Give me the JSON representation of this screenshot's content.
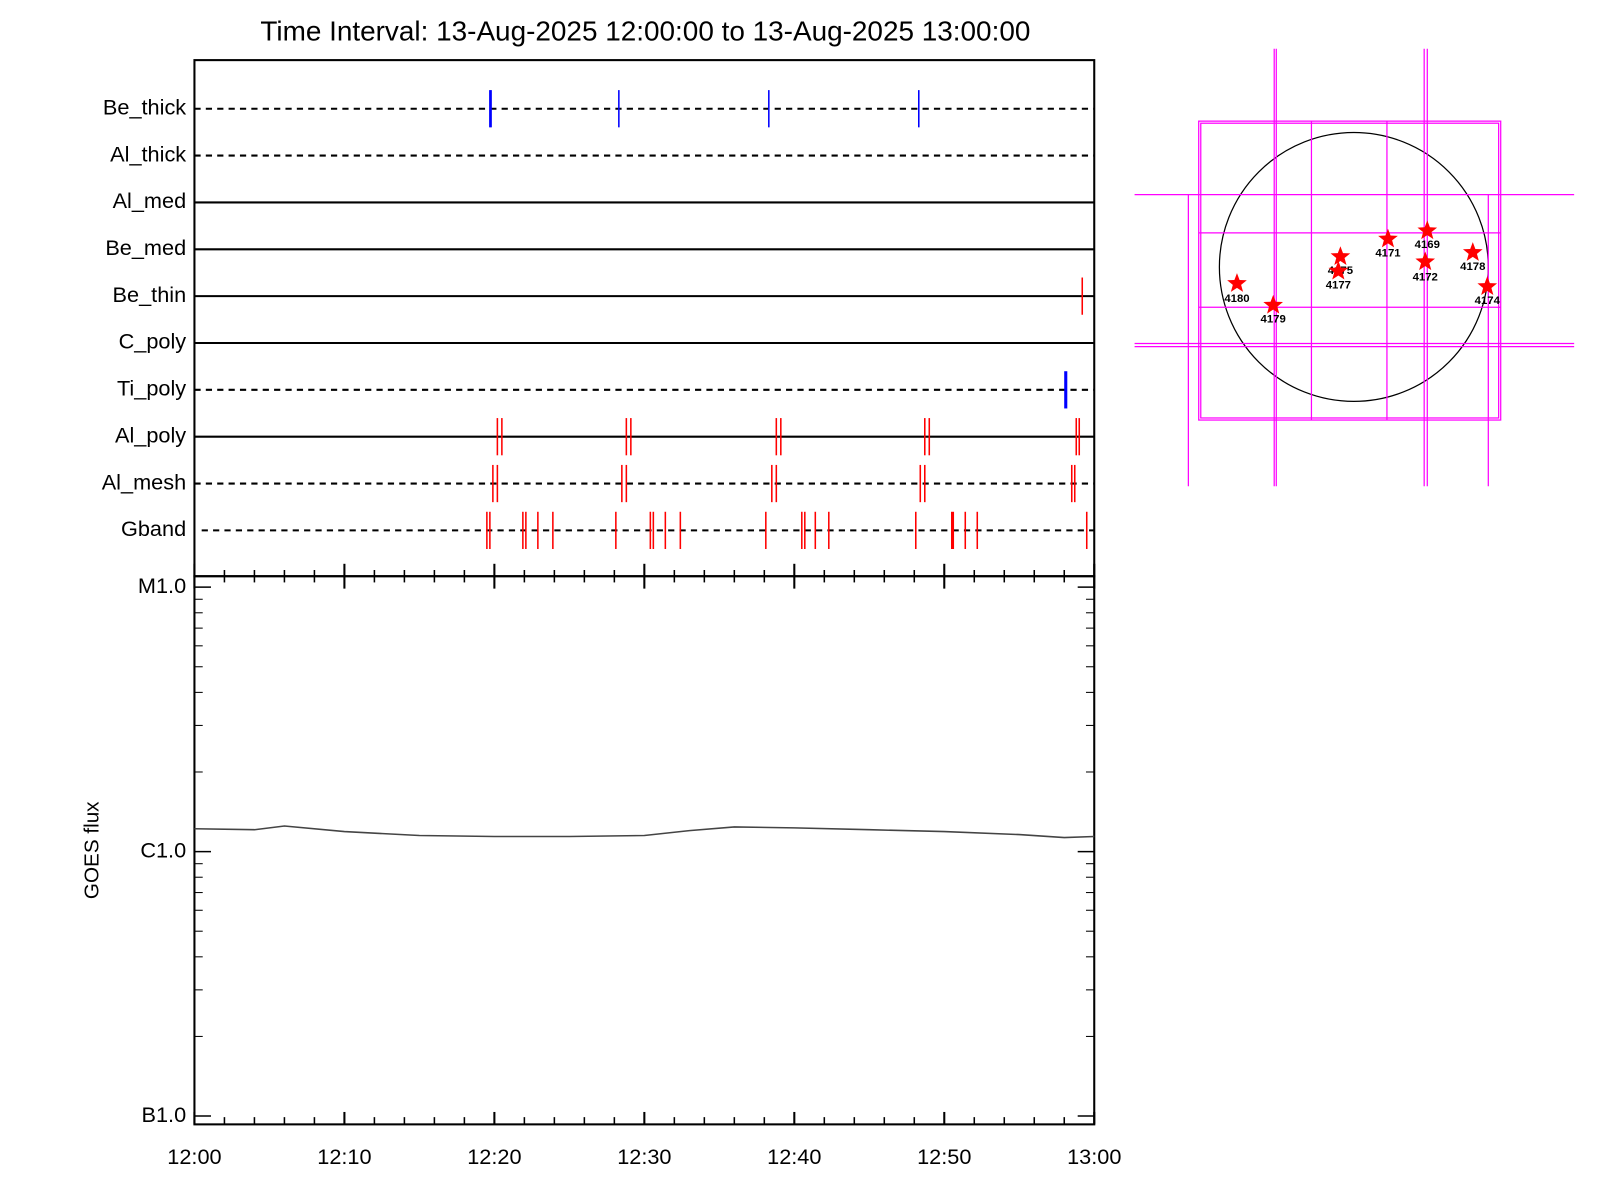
{
  "chart_data": [
    {
      "type": "timeline",
      "title": "Time Interval: 13-Aug-2025 12:00:00 to 13-Aug-2025 13:00:00",
      "xlim": [
        0,
        60
      ],
      "rows": [
        {
          "name": "Be_thick",
          "line": "dashed",
          "color": "#0000ff",
          "events": [
            19.7,
            19.78,
            28.3,
            38.3,
            48.3
          ]
        },
        {
          "name": "Al_thick",
          "line": "dashed",
          "events": []
        },
        {
          "name": "Al_med",
          "line": "solid",
          "events": []
        },
        {
          "name": "Be_med",
          "line": "solid",
          "events": []
        },
        {
          "name": "Be_thin",
          "line": "solid",
          "color": "#ff0000",
          "events": [
            59.2
          ]
        },
        {
          "name": "C_poly",
          "line": "solid",
          "events": []
        },
        {
          "name": "Ti_poly",
          "line": "dashed",
          "color": "#0000ff",
          "events": [
            58.1
          ]
        },
        {
          "name": "Al_poly",
          "line": "solid",
          "color": "#ff0000",
          "events": [
            20.2,
            20.5,
            28.8,
            29.1,
            38.8,
            39.1,
            48.7,
            49.0,
            58.8,
            59.0
          ]
        },
        {
          "name": "Al_mesh",
          "line": "dashed",
          "color": "#ff0000",
          "events": [
            19.9,
            20.2,
            28.5,
            28.8,
            38.5,
            38.8,
            48.4,
            48.7,
            58.5,
            58.7
          ]
        },
        {
          "name": "Gband",
          "line": "dashed",
          "color": "#ff0000",
          "events": [
            19.5,
            19.7,
            21.9,
            22.1,
            22.9,
            23.9,
            28.1,
            30.4,
            30.6,
            31.4,
            32.4,
            38.1,
            40.5,
            40.7,
            41.4,
            42.3,
            48.1,
            50.5,
            50.6,
            51.4,
            52.2,
            59.5
          ]
        }
      ]
    },
    {
      "type": "line",
      "ylabel": "GOES flux",
      "log_y": true,
      "color": "#444444",
      "x": [
        0,
        4,
        6,
        10,
        15,
        20,
        25,
        30,
        33,
        36,
        40,
        45,
        50,
        55,
        58,
        60
      ],
      "values": [
        1.22e-06,
        1.21e-06,
        1.25e-06,
        1.19e-06,
        1.15e-06,
        1.14e-06,
        1.14e-06,
        1.15e-06,
        1.2e-06,
        1.24e-06,
        1.23e-06,
        1.21e-06,
        1.19e-06,
        1.16e-06,
        1.13e-06,
        1.14e-06
      ],
      "xlim": [
        0,
        60
      ],
      "xticks": [
        {
          "value": 0,
          "label": "12:00"
        },
        {
          "value": 10,
          "label": "12:10"
        },
        {
          "value": 20,
          "label": "12:20"
        },
        {
          "value": 30,
          "label": "12:30"
        },
        {
          "value": 40,
          "label": "12:40"
        },
        {
          "value": 50,
          "label": "12:50"
        },
        {
          "value": 60,
          "label": "13:00"
        }
      ],
      "xminorticks": [
        2,
        4,
        6,
        8,
        12,
        14,
        16,
        18,
        22,
        24,
        26,
        28,
        32,
        34,
        36,
        38,
        42,
        44,
        46,
        48,
        52,
        54,
        56,
        58
      ],
      "ylim": [
        9.3e-08,
        1.1e-05
      ],
      "yticks": [
        {
          "value": 1e-07,
          "label": "B1.0"
        },
        {
          "value": 1e-06,
          "label": "C1.0"
        },
        {
          "value": 1e-05,
          "label": "M1.0"
        }
      ],
      "yminorticks": [
        2e-07,
        3e-07,
        4e-07,
        5e-07,
        6e-07,
        7e-07,
        8e-07,
        9e-07,
        2e-06,
        3e-06,
        4e-06,
        5e-06,
        6e-06,
        7e-06,
        8e-06,
        9e-06
      ]
    },
    {
      "type": "map",
      "labels": [
        "4180",
        "4179",
        "4175",
        "4177",
        "4171",
        "4169",
        "4172",
        "4178",
        "4174"
      ]
    }
  ]
}
